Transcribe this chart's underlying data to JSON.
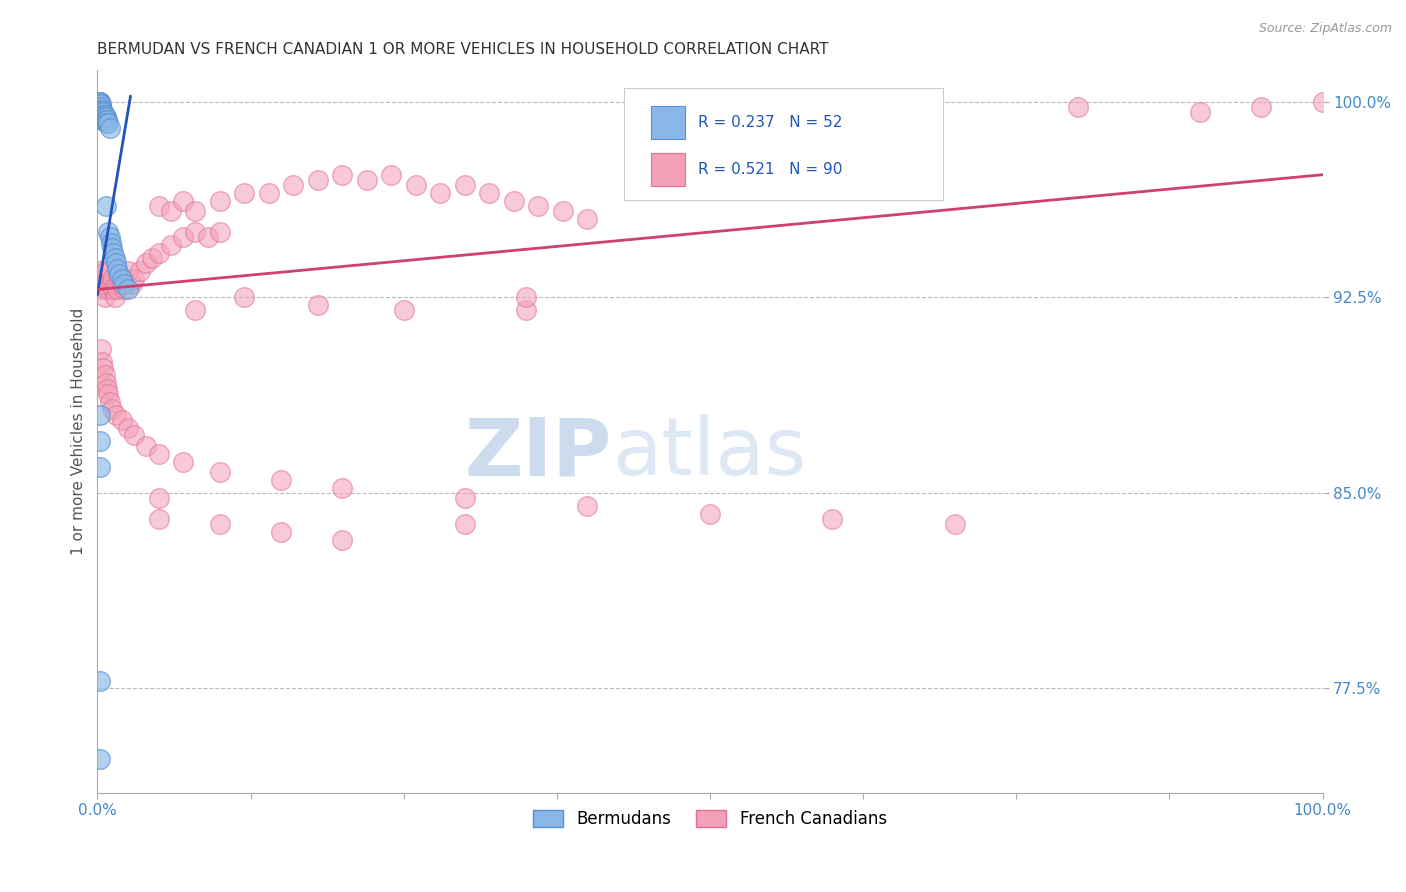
{
  "title": "BERMUDAN VS FRENCH CANADIAN 1 OR MORE VEHICLES IN HOUSEHOLD CORRELATION CHART",
  "source": "Source: ZipAtlas.com",
  "ylabel": "1 or more Vehicles in Household",
  "xlim": [
    0.0,
    1.0
  ],
  "ylim": [
    0.735,
    1.012
  ],
  "yticks": [
    0.775,
    0.85,
    0.925,
    1.0
  ],
  "ytick_labels": [
    "77.5%",
    "85.0%",
    "92.5%",
    "100.0%"
  ],
  "xtick_labels": [
    "0.0%",
    "",
    "",
    "",
    "",
    "",
    "",
    "",
    "100.0%"
  ],
  "bermudan_color": "#89B8E8",
  "french_color": "#F4A0B8",
  "bermudan_edge": "#5A90D0",
  "french_edge": "#E07090",
  "trend_blue": "#2255BB",
  "trend_pink": "#D04070",
  "legend_R_bermudan": "R = 0.237",
  "legend_N_bermudan": "N = 52",
  "legend_R_french": "R = 0.521",
  "legend_N_french": "N = 90",
  "watermark_zip": "ZIP",
  "watermark_atlas": "atlas",
  "background_color": "#FFFFFF",
  "grid_color": "#BBBBBB",
  "title_color": "#333333",
  "axis_label_color": "#555555",
  "tick_color": "#4488CC",
  "bermudan_x": [
    0.001,
    0.001,
    0.001,
    0.002,
    0.002,
    0.002,
    0.002,
    0.002,
    0.002,
    0.002,
    0.003,
    0.003,
    0.003,
    0.003,
    0.003,
    0.003,
    0.004,
    0.004,
    0.004,
    0.004,
    0.004,
    0.005,
    0.005,
    0.005,
    0.005,
    0.006,
    0.006,
    0.006,
    0.007,
    0.007,
    0.007,
    0.008,
    0.008,
    0.009,
    0.009,
    0.01,
    0.01,
    0.011,
    0.012,
    0.013,
    0.014,
    0.015,
    0.016,
    0.018,
    0.02,
    0.022,
    0.025,
    0.002,
    0.002,
    0.002,
    0.002,
    0.002
  ],
  "bermudan_y": [
    1.0,
    1.0,
    0.999,
    1.0,
    1.0,
    0.999,
    0.998,
    0.998,
    0.997,
    0.996,
    0.999,
    0.998,
    0.997,
    0.996,
    0.995,
    0.994,
    0.997,
    0.996,
    0.995,
    0.994,
    0.993,
    0.996,
    0.995,
    0.994,
    0.993,
    0.995,
    0.994,
    0.993,
    0.994,
    0.993,
    0.96,
    0.993,
    0.992,
    0.992,
    0.95,
    0.99,
    0.948,
    0.946,
    0.944,
    0.942,
    0.94,
    0.938,
    0.936,
    0.934,
    0.932,
    0.93,
    0.928,
    0.88,
    0.87,
    0.86,
    0.778,
    0.748
  ],
  "french_x": [
    0.002,
    0.003,
    0.004,
    0.005,
    0.006,
    0.007,
    0.008,
    0.009,
    0.01,
    0.011,
    0.012,
    0.013,
    0.014,
    0.015,
    0.016,
    0.018,
    0.02,
    0.022,
    0.025,
    0.028,
    0.03,
    0.035,
    0.04,
    0.045,
    0.05,
    0.06,
    0.07,
    0.08,
    0.09,
    0.1,
    0.05,
    0.06,
    0.07,
    0.08,
    0.1,
    0.12,
    0.14,
    0.16,
    0.18,
    0.2,
    0.22,
    0.24,
    0.26,
    0.28,
    0.3,
    0.32,
    0.34,
    0.36,
    0.38,
    0.4,
    0.003,
    0.004,
    0.005,
    0.006,
    0.007,
    0.008,
    0.009,
    0.01,
    0.012,
    0.015,
    0.02,
    0.025,
    0.03,
    0.04,
    0.05,
    0.07,
    0.1,
    0.15,
    0.2,
    0.3,
    0.4,
    0.5,
    0.6,
    0.7,
    0.8,
    0.9,
    0.95,
    1.0,
    0.05,
    0.1,
    0.15,
    0.2,
    0.3,
    0.35,
    0.05,
    0.08,
    0.12,
    0.18,
    0.25,
    0.35
  ],
  "french_y": [
    0.935,
    0.93,
    0.928,
    0.932,
    0.925,
    0.935,
    0.93,
    0.928,
    0.935,
    0.93,
    0.932,
    0.928,
    0.925,
    0.93,
    0.928,
    0.932,
    0.93,
    0.928,
    0.935,
    0.93,
    0.932,
    0.935,
    0.938,
    0.94,
    0.942,
    0.945,
    0.948,
    0.95,
    0.948,
    0.95,
    0.96,
    0.958,
    0.962,
    0.958,
    0.962,
    0.965,
    0.965,
    0.968,
    0.97,
    0.972,
    0.97,
    0.972,
    0.968,
    0.965,
    0.968,
    0.965,
    0.962,
    0.96,
    0.958,
    0.955,
    0.905,
    0.9,
    0.898,
    0.895,
    0.892,
    0.89,
    0.888,
    0.885,
    0.882,
    0.88,
    0.878,
    0.875,
    0.872,
    0.868,
    0.865,
    0.862,
    0.858,
    0.855,
    0.852,
    0.848,
    0.845,
    0.842,
    0.84,
    0.838,
    0.998,
    0.996,
    0.998,
    1.0,
    0.84,
    0.838,
    0.835,
    0.832,
    0.838,
    0.92,
    0.848,
    0.92,
    0.925,
    0.922,
    0.92,
    0.925
  ]
}
